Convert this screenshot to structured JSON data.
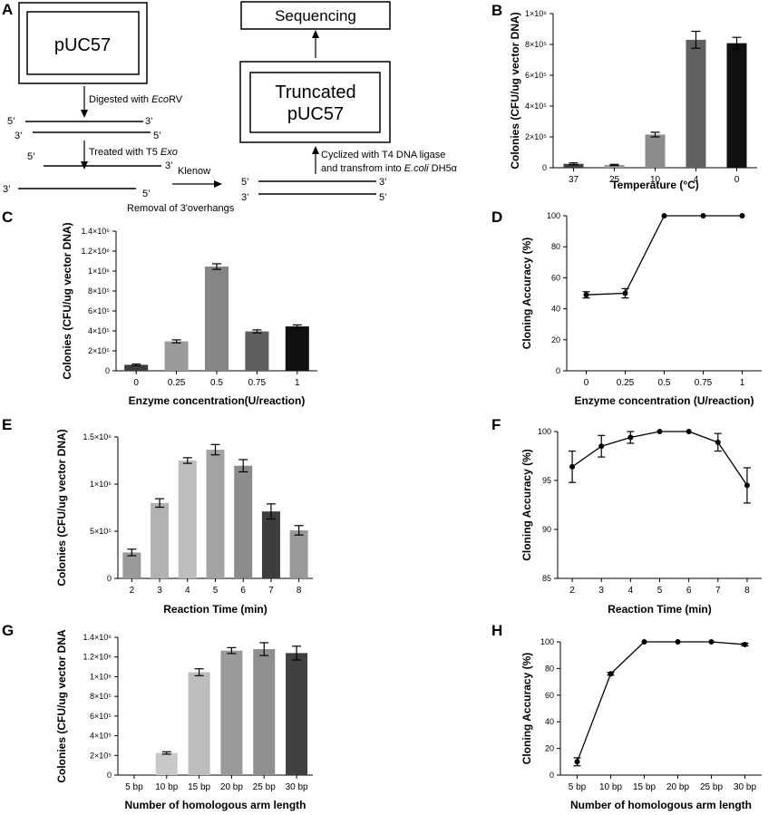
{
  "panel_labels": [
    "A",
    "B",
    "C",
    "D",
    "E",
    "F",
    "G",
    "H"
  ],
  "schematic": {
    "plasmid_label": "pUC57",
    "sequencing_label": "Sequencing",
    "truncated_line1": "Truncated",
    "truncated_line2": "pUC57",
    "step1_prefix": "Digested with ",
    "step1_enzyme": "Eco",
    "step1_suffix": "RV",
    "step2_prefix": "Treated with T5 ",
    "step2_enzyme": "Exo",
    "klenow_label": "Klenow",
    "removal_label": "Removal of 3'overhangs",
    "cyclize_line1": "Cyclized  with T4 DNA ligase",
    "cyclize_line2_prefix": "and transfrom into ",
    "cyclize_line2_species": "E.coli",
    "cyclize_line2_suffix": " DH5α",
    "end_5": "5’",
    "end_3": "3’"
  },
  "chart_data": [
    {
      "id": "B",
      "type": "bar",
      "title": "",
      "xlabel": "Temperature (°C)",
      "ylabel": "Colonies (CFU/ug vector DNA)",
      "categories": [
        "37",
        "25",
        "10",
        "4",
        "0"
      ],
      "values": [
        25000,
        18000,
        215000,
        830000,
        808000
      ],
      "errors": [
        6000,
        4000,
        15000,
        55000,
        38000
      ],
      "colors": [
        "#3d3d3d",
        "#9a9a9a",
        "#8c8c8c",
        "#606060",
        "#111111"
      ],
      "ylim": [
        0,
        1000000
      ],
      "yticks": [
        0,
        200000,
        400000,
        600000,
        800000,
        1000000
      ],
      "ytick_labels": [
        "0",
        "2×10⁵",
        "4×10⁵",
        "6×10⁵",
        "8×10⁵",
        "1×10⁶"
      ]
    },
    {
      "id": "C",
      "type": "bar",
      "title": "",
      "xlabel": "Enzyme concentration(U/reaction)",
      "ylabel": "Colonies (CFU/ug vector DNA)",
      "categories": [
        "0",
        "0.25",
        "0.5",
        "0.75",
        "1"
      ],
      "values": [
        60000,
        295000,
        1045000,
        395000,
        445000
      ],
      "errors": [
        8000,
        15000,
        28000,
        15000,
        15000
      ],
      "colors": [
        "#3d3d3d",
        "#9a9a9a",
        "#858585",
        "#5e5e5e",
        "#111111"
      ],
      "ylim": [
        0,
        1400000
      ],
      "yticks": [
        0,
        200000,
        400000,
        600000,
        800000,
        1000000,
        1200000,
        1400000
      ],
      "ytick_labels": [
        "0",
        "2×10⁵",
        "4×10⁵",
        "6×10⁵",
        "8×10⁵",
        "1×10⁶",
        "1.2×10⁶",
        "1.4×10⁶"
      ]
    },
    {
      "id": "D",
      "type": "line",
      "title": "",
      "xlabel": "Enzyme concentration (U/reaction)",
      "ylabel": "Cloning Accuracy (%)",
      "categories": [
        "0",
        "0.25",
        "0.5",
        "0.75",
        "1"
      ],
      "values": [
        49,
        50,
        100,
        100,
        100
      ],
      "errors": [
        2,
        3,
        0,
        0,
        0
      ],
      "ylim": [
        0,
        100
      ],
      "yticks": [
        0,
        20,
        40,
        60,
        80,
        100
      ],
      "ytick_labels": [
        "0",
        "20",
        "40",
        "60",
        "80",
        "100"
      ]
    },
    {
      "id": "E",
      "type": "bar",
      "title": "",
      "xlabel": "Reaction Time (min)",
      "ylabel": "Colonies (CFU/ug vector DNA)",
      "categories": [
        "2",
        "3",
        "4",
        "5",
        "6",
        "7",
        "8"
      ],
      "values": [
        275000,
        800000,
        1250000,
        1365000,
        1195000,
        710000,
        510000
      ],
      "errors": [
        35000,
        45000,
        30000,
        55000,
        65000,
        80000,
        50000
      ],
      "colors": [
        "#9a9a9a",
        "#b2b2b2",
        "#bdbdbd",
        "#a3a3a3",
        "#8c8c8c",
        "#3d3d3d",
        "#999999"
      ],
      "ylim": [
        0,
        1500000
      ],
      "yticks": [
        0,
        500000,
        1000000,
        1500000
      ],
      "ytick_labels": [
        "0",
        "5×10⁵",
        "1×10⁶",
        "1.5×10⁶"
      ]
    },
    {
      "id": "F",
      "type": "line",
      "title": "",
      "xlabel": "Reaction Time (min)",
      "ylabel": "Cloning Accuracy (%)",
      "categories": [
        "2",
        "3",
        "4",
        "5",
        "6",
        "7",
        "8"
      ],
      "values": [
        96.4,
        98.5,
        99.4,
        100,
        100,
        98.9,
        94.5
      ],
      "errors": [
        1.6,
        1.1,
        0.6,
        0,
        0,
        0.9,
        1.8
      ],
      "ylim": [
        85,
        100
      ],
      "yticks": [
        85,
        90,
        95,
        100
      ],
      "ytick_labels": [
        "85",
        "90",
        "95",
        "100"
      ]
    },
    {
      "id": "G",
      "type": "bar",
      "title": "",
      "xlabel": "Number of homologous arm length",
      "ylabel": "Colonies (CFU/ug vector DNA",
      "categories": [
        "5 bp",
        "10 bp",
        "15 bp",
        "20 bp",
        "25 bp",
        "30 bp"
      ],
      "values": [
        0,
        225000,
        1045000,
        1265000,
        1280000,
        1240000
      ],
      "errors": [
        0,
        12000,
        35000,
        30000,
        65000,
        70000
      ],
      "colors": [
        "#cccccc",
        "#c8c8c8",
        "#bdbdbd",
        "#9a9a9a",
        "#8f8f8f",
        "#404040"
      ],
      "ylim": [
        0,
        1400000
      ],
      "yticks": [
        0,
        200000,
        400000,
        600000,
        800000,
        1000000,
        1200000,
        1400000
      ],
      "ytick_labels": [
        "0",
        "2×10⁵",
        "4×10⁵",
        "6×10⁵",
        "8×10⁵",
        "1×10⁶",
        "1.2×10⁶",
        "1.4×10⁶"
      ]
    },
    {
      "id": "H",
      "type": "line",
      "title": "",
      "xlabel": "Number of homologous arm length",
      "ylabel": "Cloning Accuracy (%)",
      "categories": [
        "5 bp",
        "10 bp",
        "15 bp",
        "20 bp",
        "25 bp",
        "30 bp"
      ],
      "values": [
        10,
        76,
        100,
        100,
        100,
        98
      ],
      "errors": [
        3,
        1,
        0,
        0,
        0,
        1
      ],
      "ylim": [
        0,
        100
      ],
      "yticks": [
        0,
        20,
        40,
        60,
        80,
        100
      ],
      "ytick_labels": [
        "0",
        "20",
        "40",
        "60",
        "80",
        "100"
      ]
    }
  ]
}
